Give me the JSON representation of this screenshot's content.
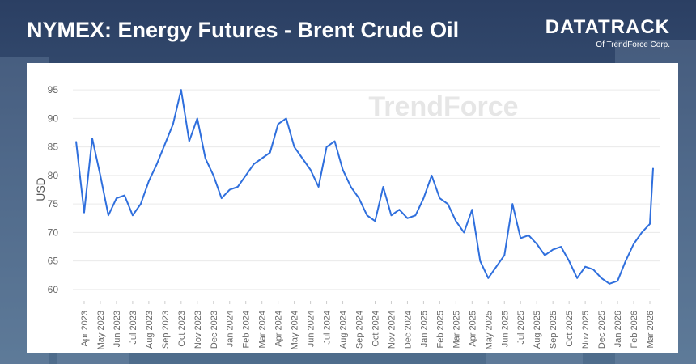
{
  "header": {
    "title": "NYMEX: Energy Futures - Brent Crude Oil",
    "logo_main": "DATATRACK",
    "logo_sub": "Of TrendForce Corp."
  },
  "chart_data": {
    "type": "line",
    "watermark": "TrendForce",
    "y_label": "USD",
    "x": [
      -0.5,
      0,
      0.5,
      1,
      1.5,
      2,
      2.5,
      3,
      3.5,
      4,
      4.5,
      5,
      5.5,
      6,
      6.5,
      7,
      7.5,
      8,
      8.5,
      9,
      9.5,
      10,
      10.5,
      11,
      11.5,
      12,
      12.5,
      13,
      13.5,
      14,
      14.5,
      15,
      15.5,
      16,
      16.5,
      17,
      17.5,
      18,
      18.5,
      19,
      19.5,
      20,
      20.5,
      21,
      21.5,
      22,
      22.5,
      23,
      23.5,
      24,
      24.5,
      25,
      25.5,
      26,
      26.5,
      27,
      27.5,
      28,
      28.5,
      29,
      29.5,
      30,
      30.5,
      31,
      31.5,
      32,
      32.5,
      33,
      33.5,
      34,
      34.5,
      35,
      35.2
    ],
    "series": [
      {
        "name": "Brent Crude Oil",
        "color": "#2f6fdd",
        "values": [
          86,
          73.5,
          86.5,
          80,
          73,
          76,
          76.5,
          73,
          75,
          79,
          82,
          85.5,
          89,
          95,
          86,
          90,
          83,
          80,
          76,
          77.5,
          78,
          80,
          82,
          83,
          84,
          89,
          90,
          85,
          83,
          81,
          78,
          85,
          86,
          81,
          78,
          76,
          73,
          72,
          78,
          73,
          74,
          72.5,
          73,
          76,
          80,
          76,
          75,
          72,
          70,
          74,
          65,
          62,
          64,
          66,
          75,
          69,
          69.5,
          68,
          66,
          67,
          67.5,
          65,
          62,
          64,
          63.5,
          62,
          61,
          61.5,
          65,
          68,
          70,
          71.5,
          81.3
        ]
      }
    ],
    "xlim": [
      -0.7,
      35.6
    ],
    "ylim": [
      58,
      98
    ],
    "xticks": [
      {
        "value": 0,
        "label": "Apr 2023"
      },
      {
        "value": 1,
        "label": "May 2023"
      },
      {
        "value": 2,
        "label": "Jun 2023"
      },
      {
        "value": 3,
        "label": "Jul 2023"
      },
      {
        "value": 4,
        "label": "Aug 2023"
      },
      {
        "value": 5,
        "label": "Sep 2023"
      },
      {
        "value": 6,
        "label": "Oct 2023"
      },
      {
        "value": 7,
        "label": "Nov 2023"
      },
      {
        "value": 8,
        "label": "Dec 2023"
      },
      {
        "value": 9,
        "label": "Jan 2024"
      },
      {
        "value": 10,
        "label": "Feb 2024"
      },
      {
        "value": 11,
        "label": "Mar 2024"
      },
      {
        "value": 12,
        "label": "Apr 2024"
      },
      {
        "value": 13,
        "label": "May 2024"
      },
      {
        "value": 14,
        "label": "Jun 2024"
      },
      {
        "value": 15,
        "label": "Jul 2024"
      },
      {
        "value": 16,
        "label": "Aug 2024"
      },
      {
        "value": 17,
        "label": "Sep 2024"
      },
      {
        "value": 18,
        "label": "Oct 2024"
      },
      {
        "value": 19,
        "label": "Nov 2024"
      },
      {
        "value": 20,
        "label": "Dec 2024"
      },
      {
        "value": 21,
        "label": "Jan 2025"
      },
      {
        "value": 22,
        "label": "Feb 2025"
      },
      {
        "value": 23,
        "label": "Mar 2025"
      },
      {
        "value": 24,
        "label": "Apr 2025"
      },
      {
        "value": 25,
        "label": "May 2025"
      },
      {
        "value": 26,
        "label": "Jun 2025"
      },
      {
        "value": 27,
        "label": "Jul 2025"
      },
      {
        "value": 28,
        "label": "Aug 2025"
      },
      {
        "value": 29,
        "label": "Sep 2025"
      },
      {
        "value": 30,
        "label": "Oct 2025"
      },
      {
        "value": 31,
        "label": "Nov 2025"
      },
      {
        "value": 32,
        "label": "Dec 2025"
      },
      {
        "value": 33,
        "label": "Jan 2026"
      },
      {
        "value": 34,
        "label": "Feb 2026"
      },
      {
        "value": 35,
        "label": "Mar 2026"
      }
    ],
    "yticks": [
      60,
      65,
      70,
      75,
      80,
      85,
      90,
      95
    ],
    "grid": true
  }
}
